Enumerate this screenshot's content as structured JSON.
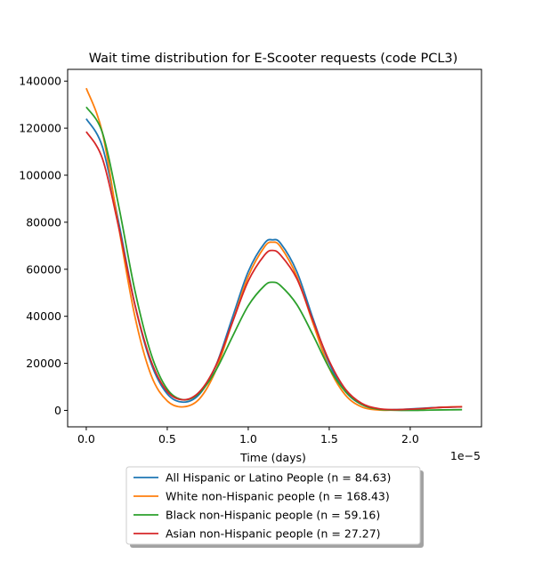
{
  "chart_data": {
    "type": "line",
    "title": "Wait time distribution  for E-Scooter  requests (code PCL3)",
    "xlabel": "Time (days)",
    "ylabel": "",
    "x_offset_label": "1e−5",
    "xlim": [
      -0.115,
      2.44
    ],
    "ylim": [
      -7000,
      145000
    ],
    "xticks": [
      0.0,
      0.5,
      1.0,
      1.5,
      2.0
    ],
    "xtick_labels": [
      "0.0",
      "0.5",
      "1.0",
      "1.5",
      "2.0"
    ],
    "yticks": [
      0,
      20000,
      40000,
      60000,
      80000,
      100000,
      120000,
      140000
    ],
    "ytick_labels": [
      "0",
      "20000",
      "40000",
      "60000",
      "80000",
      "100000",
      "120000",
      "140000"
    ],
    "grid": false,
    "legend_position": "below the plot, centered",
    "x": [
      0.0,
      0.1,
      0.2,
      0.3,
      0.4,
      0.5,
      0.6,
      0.7,
      0.8,
      0.9,
      1.0,
      1.1,
      1.15,
      1.2,
      1.3,
      1.4,
      1.5,
      1.6,
      1.7,
      1.8,
      1.9,
      2.0,
      2.1,
      2.2,
      2.32
    ],
    "series": [
      {
        "name": "All Hispanic or Latino People (n = 84.63)",
        "color": "#1f77b4",
        "values": [
          124000,
          112000,
          80000,
          45000,
          20000,
          7000,
          3500,
          7000,
          19000,
          39000,
          59000,
          71000,
          72500,
          71000,
          59000,
          39000,
          20000,
          8000,
          2500,
          500,
          300,
          600,
          1000,
          1300,
          1500
        ]
      },
      {
        "name": "White non-Hispanic people (n = 168.43)",
        "color": "#ff7f0e",
        "values": [
          137000,
          118000,
          78000,
          40000,
          15000,
          4000,
          1500,
          5000,
          17000,
          37000,
          57000,
          69500,
          71500,
          69500,
          57000,
          37000,
          18000,
          6500,
          1500,
          200,
          100,
          300,
          800,
          1300,
          1600
        ]
      },
      {
        "name": "Black non-Hispanic people (n = 59.16)",
        "color": "#2ca02c",
        "values": [
          129000,
          118000,
          87000,
          51000,
          24000,
          9000,
          4500,
          7500,
          17000,
          31000,
          44500,
          53000,
          54500,
          53000,
          45000,
          32000,
          18000,
          8000,
          2500,
          500,
          100,
          0,
          100,
          200,
          300
        ]
      },
      {
        "name": "Asian non-Hispanic people (n = 27.27)",
        "color": "#d62728",
        "values": [
          118500,
          107000,
          78000,
          45000,
          21000,
          8000,
          4500,
          8000,
          19000,
          37000,
          55000,
          66000,
          68000,
          66000,
          56000,
          38000,
          21000,
          9000,
          3000,
          800,
          300,
          500,
          900,
          1300,
          1500
        ]
      }
    ]
  }
}
